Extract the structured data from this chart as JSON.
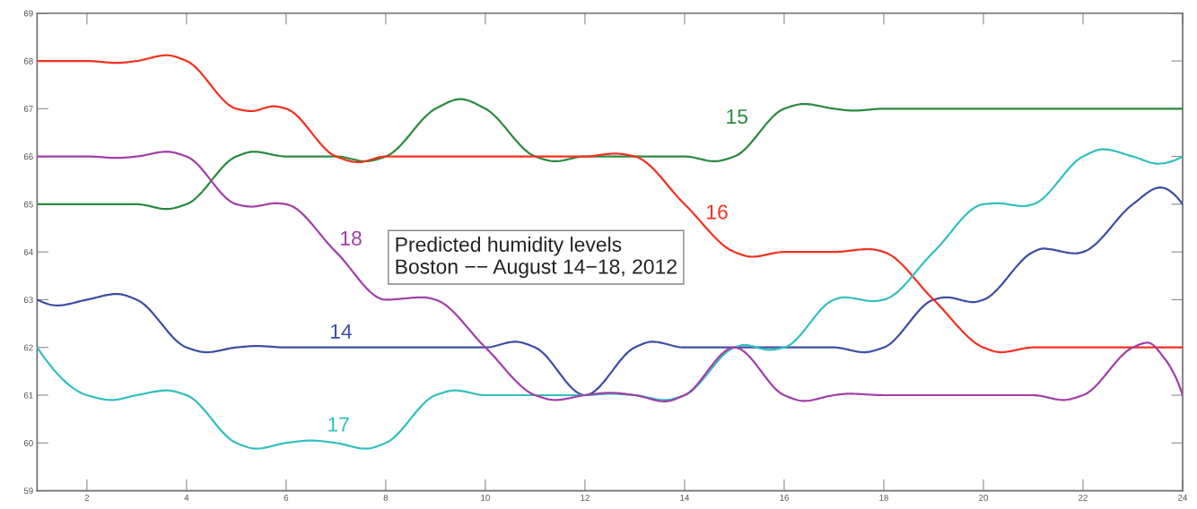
{
  "chart_data": {
    "type": "line",
    "annotations": [
      "Predicted humidity levels\nBoston −− August 14−18, 2012"
    ],
    "xlim": [
      1,
      24
    ],
    "xticks": [
      2,
      4,
      6,
      8,
      10,
      12,
      14,
      16,
      18,
      20,
      22,
      24
    ],
    "ylim": [
      59,
      69
    ],
    "yticks": [
      59,
      60,
      61,
      62,
      63,
      64,
      65,
      66,
      67,
      68,
      69
    ],
    "grid": false,
    "legend": false,
    "line_style": "solid",
    "marker": "none",
    "series": [
      {
        "name": "14",
        "color": "#3d4ea6",
        "x": [
          1,
          1.4,
          2,
          2.6,
          3,
          4,
          4.4,
          5,
          5.4,
          6,
          7,
          8,
          9,
          10,
          10.6,
          11,
          12,
          13,
          13.35,
          14,
          15,
          16,
          17,
          17.6,
          18,
          19,
          19.25,
          19.8,
          20,
          21,
          21.2,
          21.85,
          22,
          23,
          23.55,
          24
        ],
        "values": [
          63,
          62.88,
          63,
          63.12,
          63,
          62,
          61.9,
          62,
          62.03,
          62,
          62,
          62,
          62,
          62,
          62.12,
          62,
          61,
          62,
          62.12,
          62,
          62,
          62,
          62,
          61.9,
          62,
          63,
          63.05,
          62.95,
          63,
          64,
          64.07,
          63.97,
          64,
          65,
          65.35,
          65
        ]
      },
      {
        "name": "15",
        "color": "#2a8a3e",
        "x": [
          1,
          2,
          3,
          3.6,
          4,
          5,
          5.35,
          6,
          7,
          7.6,
          8,
          9,
          9.5,
          10,
          11,
          11.4,
          12,
          13,
          14,
          14.6,
          15,
          16,
          16.4,
          17,
          17.4,
          18,
          19,
          20,
          21,
          22,
          23,
          24
        ],
        "values": [
          65,
          65,
          65,
          64.9,
          65,
          66,
          66.1,
          66,
          66,
          65.9,
          66,
          67,
          67.2,
          67,
          66,
          65.9,
          66,
          66,
          66,
          65.9,
          66,
          67,
          67.1,
          67,
          66.96,
          67,
          67,
          67,
          67,
          67,
          67,
          67
        ]
      },
      {
        "name": "16",
        "color": "#f2311f",
        "x": [
          1,
          2,
          2.6,
          3,
          3.6,
          4,
          5,
          5.3,
          5.75,
          6,
          7,
          7.45,
          8,
          9,
          10,
          11,
          12,
          12.6,
          13,
          14,
          15,
          15.35,
          16,
          17,
          17.7,
          18,
          19,
          20,
          20.35,
          21,
          22,
          23,
          24
        ],
        "values": [
          68,
          68,
          67.96,
          68,
          68.12,
          68,
          67,
          66.95,
          67.05,
          67,
          66,
          65.88,
          66,
          66,
          66,
          66,
          66,
          66.06,
          66,
          65,
          64,
          63.9,
          64,
          64,
          64.06,
          64,
          63,
          62,
          61.9,
          62,
          62,
          62,
          62
        ]
      },
      {
        "name": "17",
        "color": "#33bfbf",
        "x": [
          1,
          2,
          2.5,
          3,
          3.6,
          4,
          5,
          5.4,
          6,
          6.5,
          7,
          7.6,
          8,
          9,
          9.4,
          10,
          11,
          12,
          12.5,
          13,
          13.6,
          14,
          15,
          15.2,
          15.7,
          16,
          17,
          17.2,
          17.8,
          18,
          19,
          20,
          20.3,
          20.8,
          21,
          22,
          22.4,
          23,
          23.5,
          24
        ],
        "values": [
          62,
          61,
          60.9,
          61,
          61.1,
          61,
          60,
          59.88,
          60,
          60.05,
          60,
          59.88,
          60,
          61,
          61.1,
          61,
          61,
          61,
          61.03,
          61,
          60.9,
          61,
          62,
          62.05,
          61.95,
          62,
          63,
          63.05,
          62.97,
          63,
          64,
          65,
          65.02,
          64.96,
          65,
          66,
          66.15,
          66,
          65.85,
          66
        ]
      },
      {
        "name": "18",
        "color": "#a23fa8",
        "x": [
          1,
          2,
          2.6,
          3,
          3.6,
          4,
          5,
          5.3,
          5.8,
          6,
          7,
          8,
          8.75,
          9,
          10,
          11,
          11.4,
          12,
          12.5,
          13,
          13.6,
          14,
          15,
          16,
          16.4,
          17,
          17.3,
          18,
          19,
          20,
          21,
          21.6,
          22,
          23,
          23.3,
          23.65,
          23.85,
          24
        ],
        "values": [
          66,
          66,
          65.97,
          66,
          66.1,
          66,
          65,
          64.95,
          65.02,
          65,
          64,
          63,
          63.05,
          63,
          62,
          61,
          60.9,
          61,
          61.05,
          61,
          60.87,
          61,
          62,
          61,
          60.88,
          61,
          61.03,
          61,
          61,
          61,
          61,
          60.9,
          61,
          62,
          62.1,
          61.75,
          61.4,
          61
        ]
      }
    ]
  }
}
